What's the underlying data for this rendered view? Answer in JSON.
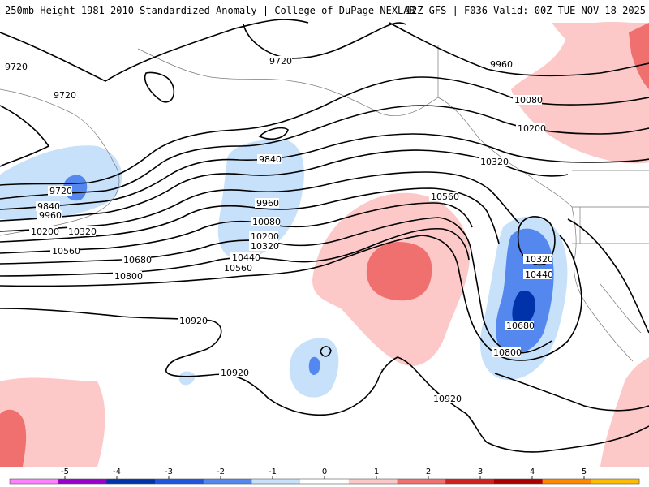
{
  "header": {
    "left": "250mb Height 1981-2010 Standardized Anomaly | College of DuPage NEXLAB",
    "right": "12Z GFS | F036 Valid: 00Z TUE NOV 18 2025"
  },
  "contour_labels": {
    "a": "9720",
    "b": "9720",
    "c": "9720",
    "d": "9720",
    "e": "9960",
    "f": "10080",
    "g": "10200",
    "h": "10320",
    "i": "9840",
    "j": "9960",
    "k": "10080",
    "l": "10200",
    "m": "10320",
    "n": "10440",
    "o": "10560",
    "p": "9840",
    "q": "9960",
    "r": "10200",
    "s": "10320",
    "t": "10560",
    "u": "10680",
    "v": "10800",
    "w": "10560",
    "x": "10320",
    "y": "10440",
    "z": "10680",
    "aa": "10800",
    "bb": "10920",
    "cc": "10920",
    "dd": "10920"
  },
  "colorbar": {
    "ticks": [
      "-5",
      "-4",
      "-3",
      "-2",
      "-1",
      "0",
      "1",
      "2",
      "3",
      "4",
      "5"
    ],
    "colors": [
      "#ff80ff",
      "#9900cc",
      "#0033aa",
      "#2255dd",
      "#5588ee",
      "#c7e1fb",
      "#ffffff",
      "#fcc8c8",
      "#f07070",
      "#d02020",
      "#aa0000",
      "#ff8800",
      "#ffbb00"
    ]
  }
}
